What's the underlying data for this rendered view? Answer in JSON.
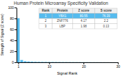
{
  "chart_data": {
    "type": "bar",
    "title": "Human Protein Microarray Specificity Validation",
    "xlabel": "Signal Rank",
    "ylabel": "Strength of Signal (Z score)",
    "x": [
      1,
      2,
      3,
      4,
      5,
      6,
      7,
      8,
      9,
      10,
      11,
      12,
      13,
      14,
      15,
      16,
      17,
      18,
      19,
      20,
      21,
      22,
      23,
      24,
      25,
      26,
      27,
      28,
      29,
      30
    ],
    "values": [
      80.55,
      4.17,
      1.98,
      1.5,
      1.2,
      1.0,
      0.9,
      0.8,
      0.75,
      0.7,
      0.65,
      0.6,
      0.55,
      0.5,
      0.48,
      0.45,
      0.42,
      0.4,
      0.38,
      0.35,
      0.33,
      0.31,
      0.29,
      0.27,
      0.25,
      0.23,
      0.21,
      0.19,
      0.17,
      0.15
    ],
    "color": "#55bbee",
    "xlim": [
      0.5,
      30
    ],
    "xticks": [
      1,
      10,
      20,
      30
    ],
    "ylim": [
      0,
      100
    ],
    "yticks": [
      0,
      20,
      40,
      60,
      80,
      100
    ],
    "grid": false,
    "table": {
      "headers": [
        "Rank",
        "Protein",
        "Z score",
        "S score"
      ],
      "rows": [
        [
          "1",
          "YBX1",
          "80.55",
          "76.39"
        ],
        [
          "2",
          "ZNF776",
          "4.17",
          "2.2"
        ],
        [
          "3",
          "LBP",
          "1.98",
          "0.13"
        ]
      ]
    }
  }
}
